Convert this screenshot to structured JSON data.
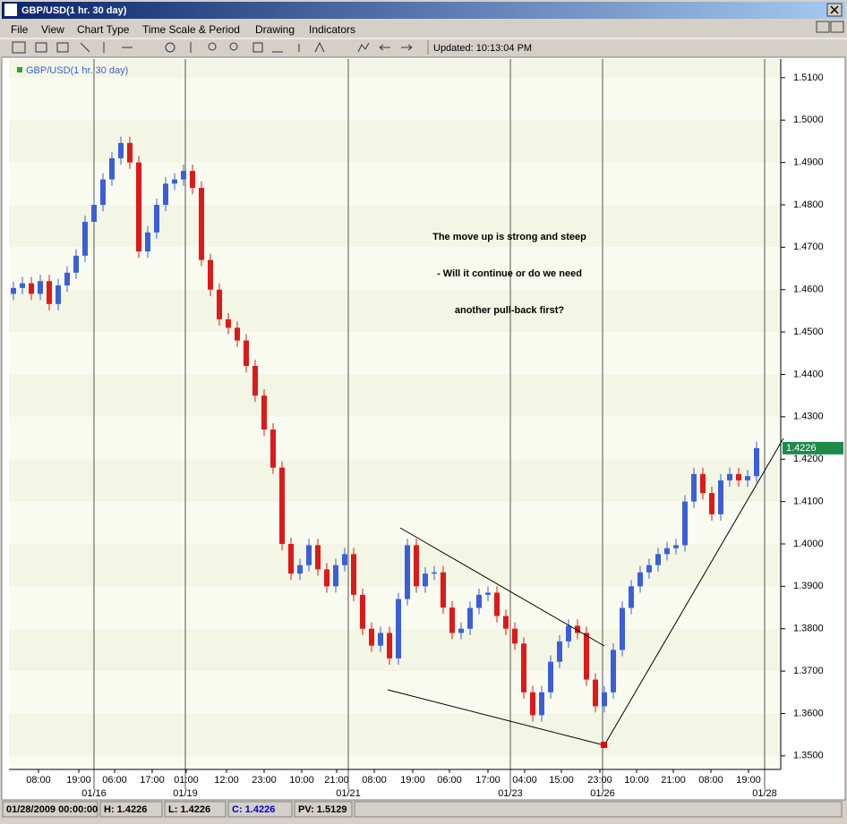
{
  "window": {
    "title": "GBP/USD(1 hr.  30 day)"
  },
  "menu": [
    "File",
    "View",
    "Chart Type",
    "Time Scale & Period",
    "Drawing",
    "Indicators"
  ],
  "toolbar": {
    "updated": "Updated: 10:13:04 PM"
  },
  "chart_data": {
    "type": "candlestick",
    "legend": "GBP/USD(1 hr.  30 day)",
    "annotation": [
      "The move up is strong and steep",
      "- Will it continue or do we need",
      "another pull-back first?"
    ],
    "up_color": "#3a5fd9",
    "down_color": "#dd1a1a",
    "band_colors": [
      "#f3f6e4",
      "#fafbf0"
    ],
    "open": [
      1.459,
      1.4604,
      1.4615,
      1.459,
      1.462,
      1.4566,
      1.461,
      1.464,
      1.468,
      1.476,
      1.48,
      1.486,
      1.491,
      1.4946,
      1.49,
      1.469,
      1.4735,
      1.48,
      1.485,
      1.486,
      1.488,
      1.484,
      1.467,
      1.46,
      1.453,
      1.451,
      1.448,
      1.442,
      1.435,
      1.427,
      1.418,
      1.4,
      1.393,
      1.395,
      1.3997,
      1.394,
      1.39,
      1.395,
      1.3976,
      1.388,
      1.38,
      1.376,
      1.379,
      1.373,
      1.387,
      1.3997,
      1.39,
      1.393,
      1.3933,
      1.385,
      1.379,
      1.38,
      1.3849,
      1.388,
      1.3885,
      1.383,
      1.38,
      1.3765,
      1.365,
      1.3596,
      1.365,
      1.3722,
      1.377,
      1.3807,
      1.379,
      1.368,
      1.3617,
      1.365,
      1.375,
      1.3849,
      1.39,
      1.3933,
      1.395,
      1.3976,
      1.399,
      1.3997,
      1.41,
      1.4165,
      1.412,
      1.407,
      1.415,
      1.4165,
      1.415,
      1.416
    ],
    "high": [
      1.4619,
      1.463,
      1.463,
      1.4635,
      1.4635,
      1.4625,
      1.4655,
      1.4695,
      1.4775,
      1.4815,
      1.4875,
      1.4925,
      1.4961,
      1.4961,
      1.4915,
      1.475,
      1.4815,
      1.4865,
      1.4875,
      1.4895,
      1.4895,
      1.4855,
      1.4685,
      1.4615,
      1.4545,
      1.4525,
      1.4495,
      1.4435,
      1.4365,
      1.4285,
      1.4195,
      1.4015,
      1.3965,
      1.4012,
      1.4012,
      1.3955,
      1.3965,
      1.3991,
      1.3991,
      1.3895,
      1.3815,
      1.3805,
      1.3805,
      1.3885,
      1.4012,
      1.4012,
      1.3945,
      1.3948,
      1.3948,
      1.3865,
      1.3815,
      1.3864,
      1.3895,
      1.39,
      1.39,
      1.3845,
      1.3815,
      1.378,
      1.3665,
      1.3665,
      1.3737,
      1.3785,
      1.3822,
      1.3822,
      1.3805,
      1.3695,
      1.3665,
      1.3765,
      1.3864,
      1.3915,
      1.3948,
      1.3965,
      1.3991,
      1.4005,
      1.4012,
      1.4115,
      1.418,
      1.418,
      1.4135,
      1.4165,
      1.418,
      1.418,
      1.4175,
      1.4241
    ],
    "low": [
      1.4575,
      1.4589,
      1.4575,
      1.4575,
      1.4551,
      1.4551,
      1.4595,
      1.4625,
      1.4665,
      1.4745,
      1.4785,
      1.4845,
      1.4895,
      1.4885,
      1.4675,
      1.4675,
      1.472,
      1.4785,
      1.4835,
      1.4845,
      1.4825,
      1.4655,
      1.4585,
      1.4515,
      1.4495,
      1.4465,
      1.4405,
      1.4335,
      1.4255,
      1.4165,
      1.3985,
      1.3915,
      1.3915,
      1.3935,
      1.3925,
      1.3885,
      1.3885,
      1.3935,
      1.3865,
      1.3785,
      1.3745,
      1.3745,
      1.3715,
      1.3715,
      1.3855,
      1.3885,
      1.3885,
      1.3915,
      1.3835,
      1.3775,
      1.3775,
      1.3785,
      1.3834,
      1.3865,
      1.3815,
      1.3785,
      1.375,
      1.3635,
      1.3581,
      1.3581,
      1.3635,
      1.3707,
      1.3755,
      1.3775,
      1.3665,
      1.3602,
      1.3602,
      1.3635,
      1.3735,
      1.3834,
      1.3885,
      1.3918,
      1.3935,
      1.3961,
      1.3975,
      1.3982,
      1.4085,
      1.4105,
      1.4055,
      1.4055,
      1.4135,
      1.4135,
      1.4135,
      1.4145
    ],
    "close": [
      1.4604,
      1.4615,
      1.459,
      1.462,
      1.4566,
      1.461,
      1.464,
      1.468,
      1.476,
      1.48,
      1.486,
      1.491,
      1.4946,
      1.49,
      1.469,
      1.4735,
      1.48,
      1.485,
      1.486,
      1.488,
      1.484,
      1.467,
      1.46,
      1.453,
      1.451,
      1.448,
      1.442,
      1.435,
      1.427,
      1.418,
      1.4,
      1.393,
      1.395,
      1.3997,
      1.394,
      1.39,
      1.395,
      1.3976,
      1.388,
      1.38,
      1.376,
      1.379,
      1.373,
      1.387,
      1.3997,
      1.39,
      1.393,
      1.3933,
      1.385,
      1.379,
      1.38,
      1.3849,
      1.388,
      1.3885,
      1.383,
      1.38,
      1.3765,
      1.365,
      1.3596,
      1.365,
      1.3722,
      1.377,
      1.3807,
      1.379,
      1.368,
      1.3617,
      1.365,
      1.375,
      1.3849,
      1.39,
      1.3933,
      1.395,
      1.3976,
      1.399,
      1.3997,
      1.41,
      1.4165,
      1.412,
      1.407,
      1.415,
      1.4165,
      1.415,
      1.416,
      1.4226
    ],
    "last_price": 1.4226,
    "xlim": [
      0,
      86.2
    ],
    "xticks": [
      {
        "value": 3.3,
        "label": "08:00"
      },
      {
        "value": 7.8,
        "label": "19:00"
      },
      {
        "value": 11.8,
        "label": "06:00"
      },
      {
        "value": 16,
        "label": "17:00"
      },
      {
        "value": 19.8,
        "label": "01:00"
      },
      {
        "value": 24.3,
        "label": "12:00"
      },
      {
        "value": 28.5,
        "label": "23:00"
      },
      {
        "value": 32.7,
        "label": "10:00"
      },
      {
        "value": 36.6,
        "label": "21:00"
      },
      {
        "value": 40.8,
        "label": "08:00"
      },
      {
        "value": 45.1,
        "label": "19:00"
      },
      {
        "value": 49.2,
        "label": "06:00"
      },
      {
        "value": 53.5,
        "label": "17:00"
      },
      {
        "value": 57.6,
        "label": "04:00"
      },
      {
        "value": 61.7,
        "label": "15:00"
      },
      {
        "value": 66,
        "label": "23:00"
      },
      {
        "value": 70.1,
        "label": "10:00"
      },
      {
        "value": 74.2,
        "label": "21:00"
      },
      {
        "value": 78.4,
        "label": "08:00"
      },
      {
        "value": 82.6,
        "label": "19:00"
      }
    ],
    "date_ticks": [
      {
        "value": 9.5,
        "label": "01/16"
      },
      {
        "value": 19.7,
        "label": "01/19"
      },
      {
        "value": 37.9,
        "label": "01/21"
      },
      {
        "value": 56,
        "label": "01/23"
      },
      {
        "value": 66.3,
        "label": "01/26"
      },
      {
        "value": 84.4,
        "label": "01/28"
      }
    ],
    "ylim": [
      1.3468,
      1.5144
    ],
    "yticks": [
      {
        "value": 1.35,
        "label": "1.3500"
      },
      {
        "value": 1.36,
        "label": "1.3600"
      },
      {
        "value": 1.37,
        "label": "1.3700"
      },
      {
        "value": 1.38,
        "label": "1.3800"
      },
      {
        "value": 1.39,
        "label": "1.3900"
      },
      {
        "value": 1.4,
        "label": "1.4000"
      },
      {
        "value": 1.41,
        "label": "1.4100"
      },
      {
        "value": 1.42,
        "label": "1.4200"
      },
      {
        "value": 1.43,
        "label": "1.4300"
      },
      {
        "value": 1.44,
        "label": "1.4400"
      },
      {
        "value": 1.45,
        "label": "1.4500"
      },
      {
        "value": 1.46,
        "label": "1.4600"
      },
      {
        "value": 1.47,
        "label": "1.4700"
      },
      {
        "value": 1.48,
        "label": "1.4800"
      },
      {
        "value": 1.49,
        "label": "1.4900"
      },
      {
        "value": 1.5,
        "label": "1.5000"
      },
      {
        "value": 1.51,
        "label": "1.5100"
      }
    ]
  },
  "status_bar": [
    "01/28/2009 00:00:00",
    "H: 1.4226",
    "L: 1.4226",
    "C: 1.4226",
    "PV: 1.5129"
  ]
}
